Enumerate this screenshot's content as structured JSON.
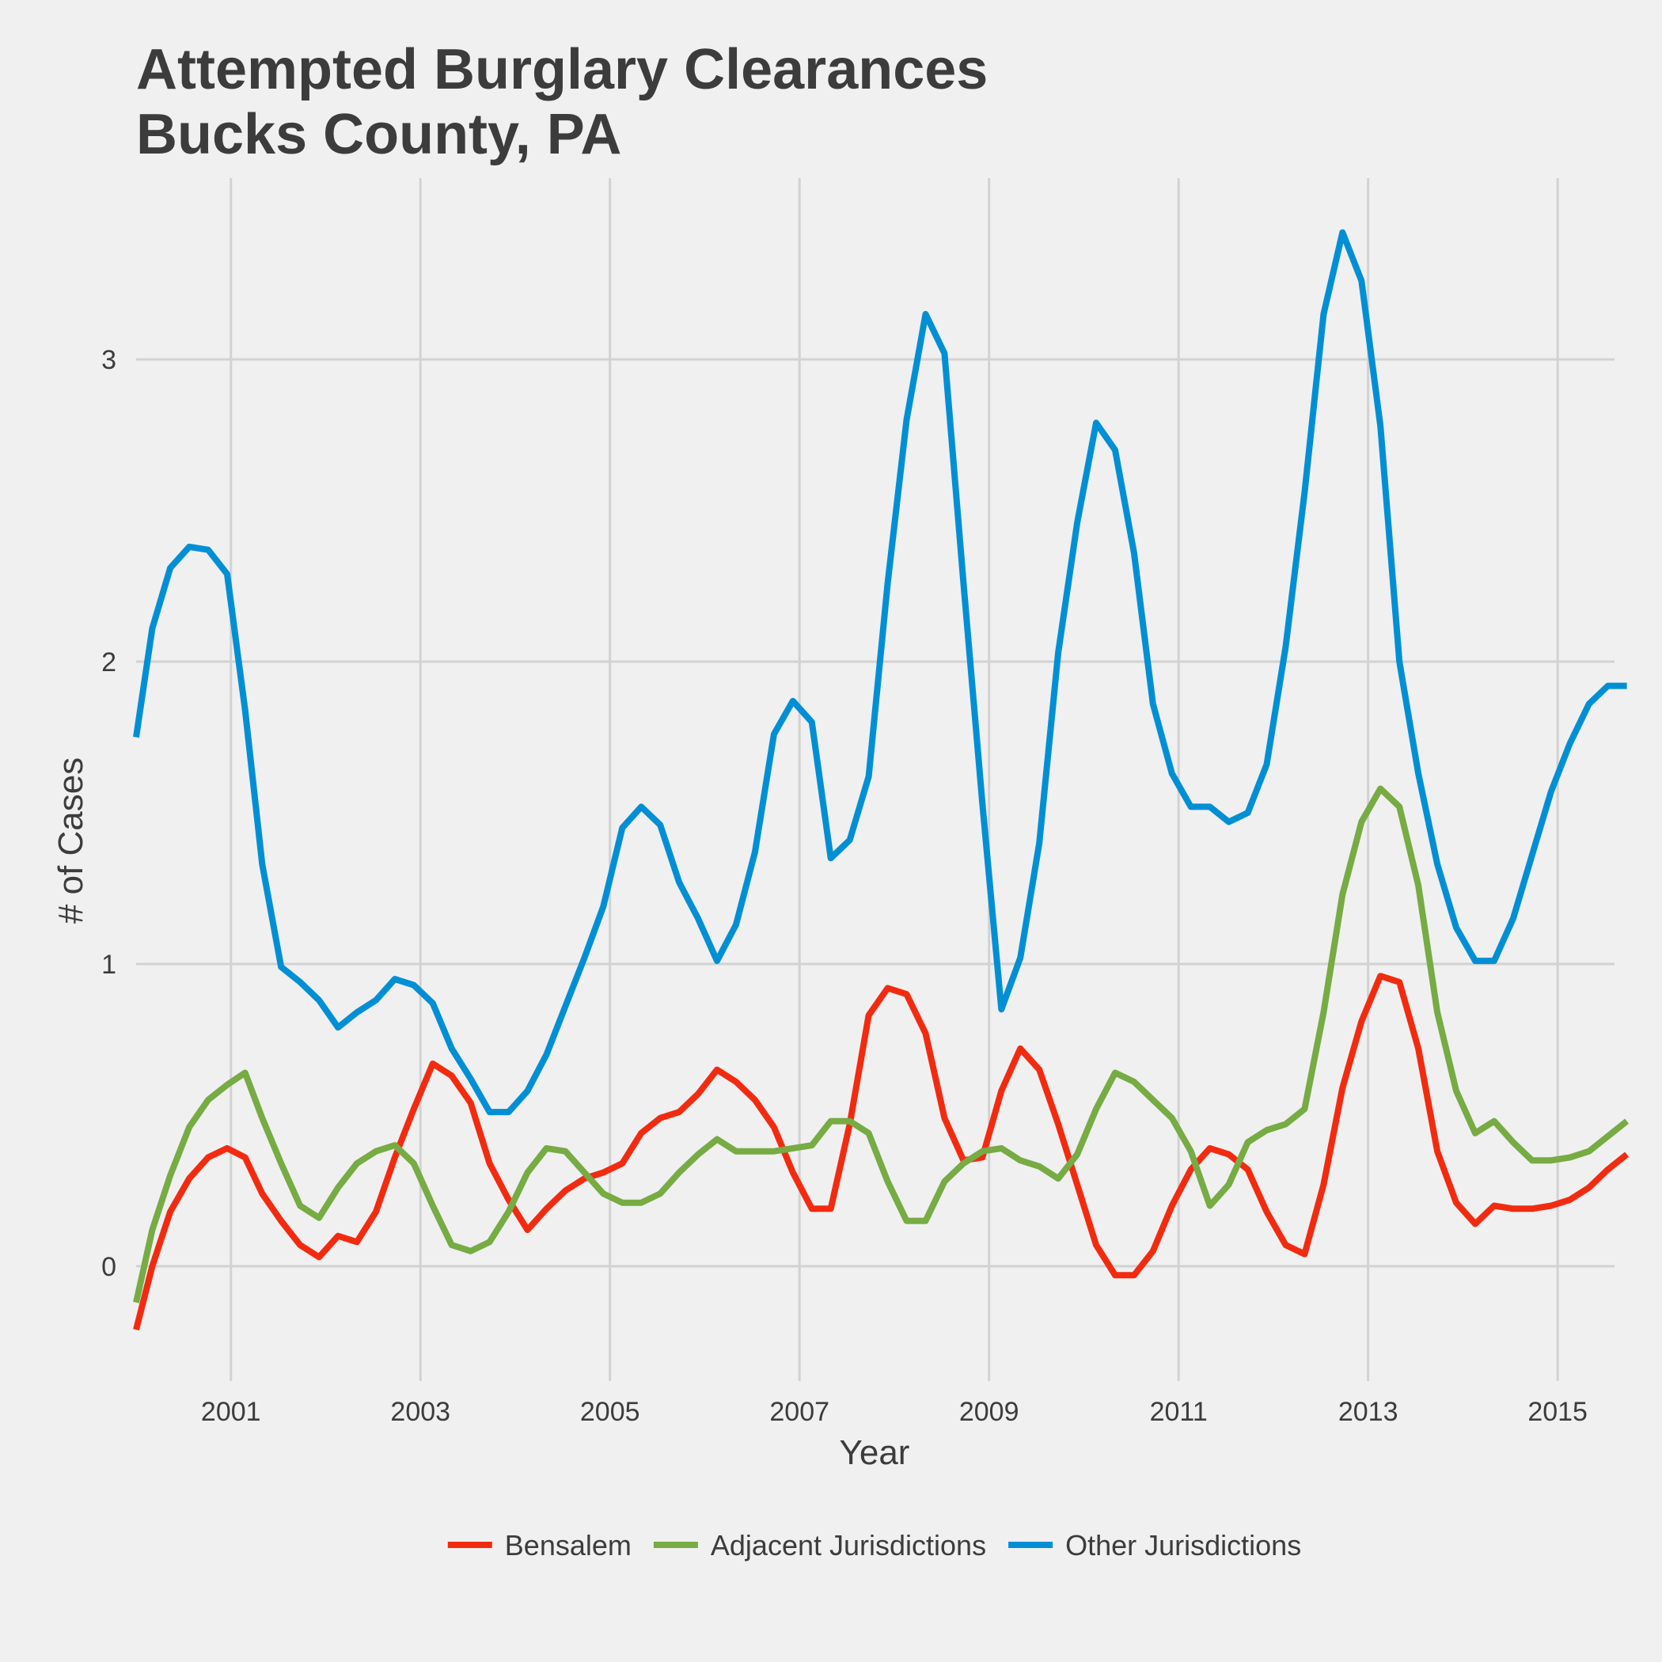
{
  "chart_data": {
    "type": "line",
    "title_lines": [
      "Attempted Burglary Clearances",
      "Bucks County, PA"
    ],
    "xlabel": "Year",
    "ylabel": "# of Cases",
    "x_ticks": [
      2001,
      2003,
      2005,
      2007,
      2009,
      2011,
      2013,
      2015
    ],
    "y_ticks": [
      0,
      1,
      2,
      3
    ],
    "xlim": [
      2000,
      2015.6
    ],
    "ylim": [
      -0.38,
      3.6
    ],
    "grid": true,
    "legend_position": "bottom",
    "series": [
      {
        "name": "Bensalem",
        "color": "#f22b10",
        "points": [
          [
            2000.0,
            -0.21
          ],
          [
            2000.17,
            0.0
          ],
          [
            2000.36,
            0.18
          ],
          [
            2000.56,
            0.29
          ],
          [
            2000.76,
            0.36
          ],
          [
            2000.96,
            0.39
          ],
          [
            2001.15,
            0.36
          ],
          [
            2001.33,
            0.24
          ],
          [
            2001.53,
            0.15
          ],
          [
            2001.73,
            0.07
          ],
          [
            2001.93,
            0.03
          ],
          [
            2002.13,
            0.1
          ],
          [
            2002.33,
            0.08
          ],
          [
            2002.53,
            0.18
          ],
          [
            2002.73,
            0.36
          ],
          [
            2002.93,
            0.52
          ],
          [
            2003.13,
            0.67
          ],
          [
            2003.33,
            0.63
          ],
          [
            2003.53,
            0.54
          ],
          [
            2003.73,
            0.34
          ],
          [
            2003.93,
            0.22
          ],
          [
            2004.13,
            0.12
          ],
          [
            2004.33,
            0.19
          ],
          [
            2004.53,
            0.25
          ],
          [
            2004.73,
            0.29
          ],
          [
            2004.93,
            0.31
          ],
          [
            2005.13,
            0.34
          ],
          [
            2005.33,
            0.44
          ],
          [
            2005.53,
            0.49
          ],
          [
            2005.73,
            0.51
          ],
          [
            2005.93,
            0.57
          ],
          [
            2006.13,
            0.65
          ],
          [
            2006.33,
            0.61
          ],
          [
            2006.53,
            0.55
          ],
          [
            2006.73,
            0.46
          ],
          [
            2006.93,
            0.31
          ],
          [
            2007.13,
            0.19
          ],
          [
            2007.33,
            0.19
          ],
          [
            2007.53,
            0.47
          ],
          [
            2007.73,
            0.83
          ],
          [
            2007.93,
            0.92
          ],
          [
            2008.13,
            0.9
          ],
          [
            2008.33,
            0.77
          ],
          [
            2008.53,
            0.49
          ],
          [
            2008.73,
            0.35
          ],
          [
            2008.93,
            0.36
          ],
          [
            2009.13,
            0.58
          ],
          [
            2009.33,
            0.72
          ],
          [
            2009.53,
            0.65
          ],
          [
            2009.73,
            0.47
          ],
          [
            2009.93,
            0.27
          ],
          [
            2010.13,
            0.07
          ],
          [
            2010.33,
            -0.03
          ],
          [
            2010.53,
            -0.03
          ],
          [
            2010.73,
            0.05
          ],
          [
            2010.93,
            0.2
          ],
          [
            2011.13,
            0.32
          ],
          [
            2011.33,
            0.39
          ],
          [
            2011.53,
            0.37
          ],
          [
            2011.73,
            0.32
          ],
          [
            2011.93,
            0.18
          ],
          [
            2012.13,
            0.07
          ],
          [
            2012.33,
            0.04
          ],
          [
            2012.53,
            0.27
          ],
          [
            2012.73,
            0.59
          ],
          [
            2012.93,
            0.81
          ],
          [
            2013.13,
            0.96
          ],
          [
            2013.33,
            0.94
          ],
          [
            2013.53,
            0.72
          ],
          [
            2013.73,
            0.38
          ],
          [
            2013.93,
            0.21
          ],
          [
            2014.13,
            0.14
          ],
          [
            2014.33,
            0.2
          ],
          [
            2014.53,
            0.19
          ],
          [
            2014.73,
            0.19
          ],
          [
            2014.93,
            0.2
          ],
          [
            2015.13,
            0.22
          ],
          [
            2015.33,
            0.26
          ],
          [
            2015.53,
            0.32
          ],
          [
            2015.73,
            0.37
          ]
        ]
      },
      {
        "name": "Adjacent Jurisdictions",
        "color": "#77ab43",
        "points": [
          [
            2000.0,
            -0.12
          ],
          [
            2000.17,
            0.12
          ],
          [
            2000.36,
            0.3
          ],
          [
            2000.56,
            0.46
          ],
          [
            2000.76,
            0.55
          ],
          [
            2000.96,
            0.6
          ],
          [
            2001.15,
            0.64
          ],
          [
            2001.33,
            0.49
          ],
          [
            2001.53,
            0.34
          ],
          [
            2001.73,
            0.2
          ],
          [
            2001.93,
            0.16
          ],
          [
            2002.13,
            0.26
          ],
          [
            2002.33,
            0.34
          ],
          [
            2002.53,
            0.38
          ],
          [
            2002.73,
            0.4
          ],
          [
            2002.93,
            0.34
          ],
          [
            2003.13,
            0.2
          ],
          [
            2003.33,
            0.07
          ],
          [
            2003.53,
            0.05
          ],
          [
            2003.73,
            0.08
          ],
          [
            2003.93,
            0.18
          ],
          [
            2004.13,
            0.31
          ],
          [
            2004.33,
            0.39
          ],
          [
            2004.53,
            0.38
          ],
          [
            2004.73,
            0.31
          ],
          [
            2004.93,
            0.24
          ],
          [
            2005.13,
            0.21
          ],
          [
            2005.33,
            0.21
          ],
          [
            2005.53,
            0.24
          ],
          [
            2005.73,
            0.31
          ],
          [
            2005.93,
            0.37
          ],
          [
            2006.13,
            0.42
          ],
          [
            2006.33,
            0.38
          ],
          [
            2006.53,
            0.38
          ],
          [
            2006.73,
            0.38
          ],
          [
            2006.93,
            0.39
          ],
          [
            2007.13,
            0.4
          ],
          [
            2007.33,
            0.48
          ],
          [
            2007.53,
            0.48
          ],
          [
            2007.73,
            0.44
          ],
          [
            2007.93,
            0.28
          ],
          [
            2008.13,
            0.15
          ],
          [
            2008.33,
            0.15
          ],
          [
            2008.53,
            0.28
          ],
          [
            2008.73,
            0.34
          ],
          [
            2008.93,
            0.38
          ],
          [
            2009.13,
            0.39
          ],
          [
            2009.33,
            0.35
          ],
          [
            2009.53,
            0.33
          ],
          [
            2009.73,
            0.29
          ],
          [
            2009.93,
            0.37
          ],
          [
            2010.13,
            0.52
          ],
          [
            2010.33,
            0.64
          ],
          [
            2010.53,
            0.61
          ],
          [
            2010.73,
            0.55
          ],
          [
            2010.93,
            0.49
          ],
          [
            2011.13,
            0.38
          ],
          [
            2011.33,
            0.2
          ],
          [
            2011.53,
            0.27
          ],
          [
            2011.73,
            0.41
          ],
          [
            2011.93,
            0.45
          ],
          [
            2012.13,
            0.47
          ],
          [
            2012.33,
            0.52
          ],
          [
            2012.53,
            0.84
          ],
          [
            2012.73,
            1.23
          ],
          [
            2012.93,
            1.47
          ],
          [
            2013.13,
            1.58
          ],
          [
            2013.33,
            1.52
          ],
          [
            2013.53,
            1.26
          ],
          [
            2013.73,
            0.84
          ],
          [
            2013.93,
            0.58
          ],
          [
            2014.13,
            0.44
          ],
          [
            2014.33,
            0.48
          ],
          [
            2014.53,
            0.41
          ],
          [
            2014.73,
            0.35
          ],
          [
            2014.93,
            0.35
          ],
          [
            2015.13,
            0.36
          ],
          [
            2015.33,
            0.38
          ],
          [
            2015.53,
            0.43
          ],
          [
            2015.73,
            0.48
          ]
        ]
      },
      {
        "name": "Other Jurisdictions",
        "color": "#008fd5",
        "points": [
          [
            2000.0,
            1.75
          ],
          [
            2000.17,
            2.11
          ],
          [
            2000.36,
            2.31
          ],
          [
            2000.56,
            2.38
          ],
          [
            2000.76,
            2.37
          ],
          [
            2000.96,
            2.29
          ],
          [
            2001.15,
            1.84
          ],
          [
            2001.33,
            1.33
          ],
          [
            2001.53,
            0.99
          ],
          [
            2001.73,
            0.94
          ],
          [
            2001.93,
            0.88
          ],
          [
            2002.13,
            0.79
          ],
          [
            2002.33,
            0.84
          ],
          [
            2002.53,
            0.88
          ],
          [
            2002.73,
            0.95
          ],
          [
            2002.93,
            0.93
          ],
          [
            2003.13,
            0.87
          ],
          [
            2003.33,
            0.72
          ],
          [
            2003.53,
            0.62
          ],
          [
            2003.73,
            0.51
          ],
          [
            2003.93,
            0.51
          ],
          [
            2004.13,
            0.58
          ],
          [
            2004.33,
            0.7
          ],
          [
            2004.53,
            0.86
          ],
          [
            2004.73,
            1.02
          ],
          [
            2004.93,
            1.19
          ],
          [
            2005.13,
            1.45
          ],
          [
            2005.33,
            1.52
          ],
          [
            2005.53,
            1.46
          ],
          [
            2005.73,
            1.27
          ],
          [
            2005.93,
            1.15
          ],
          [
            2006.13,
            1.01
          ],
          [
            2006.33,
            1.13
          ],
          [
            2006.53,
            1.37
          ],
          [
            2006.73,
            1.76
          ],
          [
            2006.93,
            1.87
          ],
          [
            2007.13,
            1.8
          ],
          [
            2007.33,
            1.35
          ],
          [
            2007.53,
            1.41
          ],
          [
            2007.73,
            1.62
          ],
          [
            2007.93,
            2.26
          ],
          [
            2008.13,
            2.8
          ],
          [
            2008.33,
            3.15
          ],
          [
            2008.53,
            3.02
          ],
          [
            2008.73,
            2.26
          ],
          [
            2008.93,
            1.53
          ],
          [
            2009.13,
            0.85
          ],
          [
            2009.33,
            1.02
          ],
          [
            2009.53,
            1.4
          ],
          [
            2009.73,
            2.03
          ],
          [
            2009.93,
            2.46
          ],
          [
            2010.13,
            2.79
          ],
          [
            2010.33,
            2.7
          ],
          [
            2010.53,
            2.36
          ],
          [
            2010.73,
            1.86
          ],
          [
            2010.93,
            1.63
          ],
          [
            2011.13,
            1.52
          ],
          [
            2011.33,
            1.52
          ],
          [
            2011.53,
            1.47
          ],
          [
            2011.73,
            1.5
          ],
          [
            2011.93,
            1.66
          ],
          [
            2012.13,
            2.05
          ],
          [
            2012.33,
            2.56
          ],
          [
            2012.53,
            3.15
          ],
          [
            2012.73,
            3.42
          ],
          [
            2012.93,
            3.26
          ],
          [
            2013.13,
            2.78
          ],
          [
            2013.33,
            2.0
          ],
          [
            2013.53,
            1.63
          ],
          [
            2013.73,
            1.33
          ],
          [
            2013.93,
            1.12
          ],
          [
            2014.13,
            1.01
          ],
          [
            2014.33,
            1.01
          ],
          [
            2014.53,
            1.15
          ],
          [
            2014.73,
            1.36
          ],
          [
            2014.93,
            1.57
          ],
          [
            2015.13,
            1.73
          ],
          [
            2015.33,
            1.86
          ],
          [
            2015.53,
            1.92
          ],
          [
            2015.73,
            1.92
          ]
        ]
      }
    ]
  }
}
